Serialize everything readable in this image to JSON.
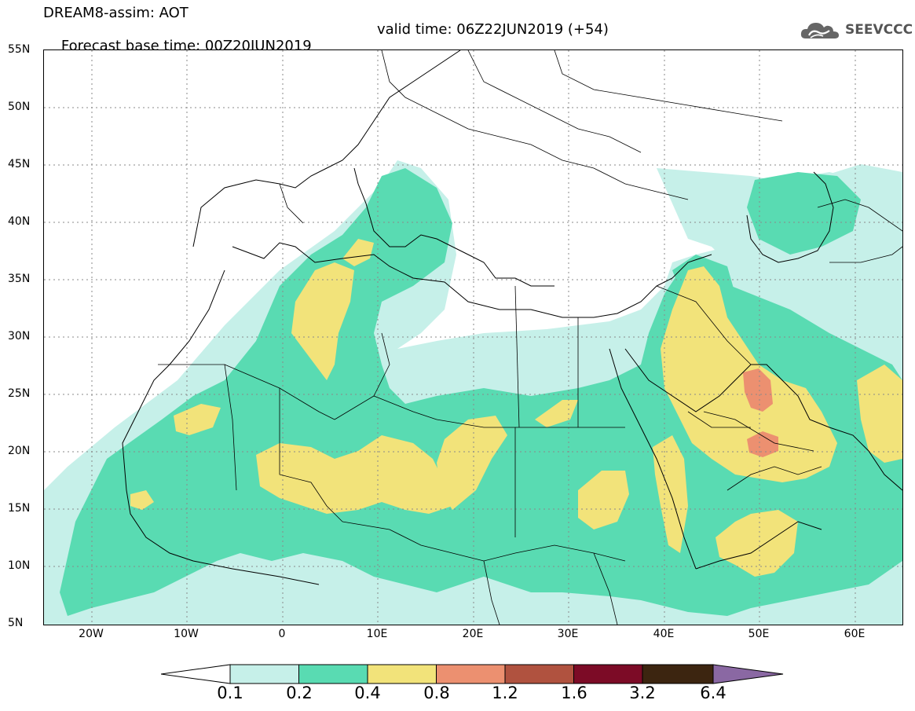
{
  "title": {
    "line1": "DREAM8-assim: AOT",
    "line2": "Forecast base time: 00Z20JUN2019",
    "valid": "valid time: 06Z22JUN2019 (+54)"
  },
  "logo": {
    "text": "SEEVCCC",
    "icon": "cloud-icon"
  },
  "map": {
    "lon_range": [
      -25,
      65
    ],
    "lat_range": [
      5,
      55
    ],
    "lat_labels": [
      "55N",
      "50N",
      "45N",
      "40N",
      "35N",
      "30N",
      "25N",
      "20N",
      "15N",
      "10N",
      "5N"
    ],
    "lon_labels": [
      "20W",
      "10W",
      "0",
      "10E",
      "20E",
      "30E",
      "40E",
      "50E",
      "60E"
    ],
    "grid": true
  },
  "colorbar": {
    "labels": [
      "0.1",
      "0.2",
      "0.4",
      "0.8",
      "1.2",
      "1.6",
      "3.2",
      "6.4"
    ],
    "colors": [
      "#ffffff",
      "#c6f0e9",
      "#59dbb2",
      "#f2e37a",
      "#ec9070",
      "#b0523f",
      "#7c0b26",
      "#3c2510",
      "#8a68a3"
    ]
  }
}
